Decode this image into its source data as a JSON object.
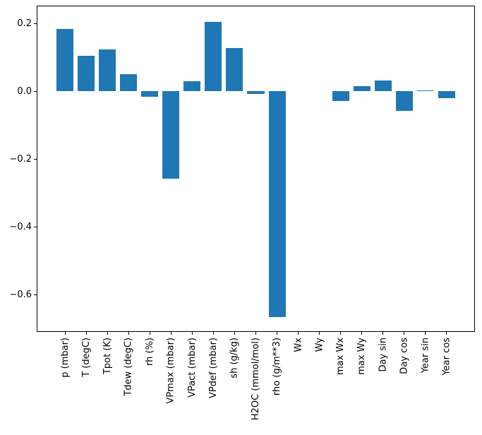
{
  "chart_data": {
    "type": "bar",
    "title": "",
    "xlabel": "",
    "ylabel": "",
    "categories": [
      "p (mbar)",
      "T (degC)",
      "Tpot (K)",
      "Tdew (degC)",
      "rh (%)",
      "VPmax (mbar)",
      "VPact (mbar)",
      "VPdef (mbar)",
      "sh (g/kg)",
      "H2OC (mmol/mol)",
      "rho (g/m**3)",
      "Wx",
      "Wy",
      "max Wx",
      "max Wy",
      "Day sin",
      "Day cos",
      "Year sin",
      "Year cos"
    ],
    "values": [
      0.185,
      0.105,
      0.124,
      0.051,
      -0.015,
      -0.258,
      0.031,
      0.206,
      0.127,
      -0.008,
      -0.667,
      0.0,
      0.0,
      -0.028,
      0.016,
      0.032,
      -0.057,
      0.002,
      -0.021
    ],
    "yticks": [
      0.2,
      0.0,
      -0.2,
      -0.4,
      -0.6
    ],
    "ylim": [
      -0.71,
      0.253
    ],
    "xlim": [
      -1.34,
      19.34
    ],
    "bar_width_units": 0.8,
    "bar_color": "#1f77b4",
    "axis_color": "#000000",
    "background_color": "#ffffff",
    "grid": false,
    "legend": null,
    "x_tick_label_rotation_deg": 90
  }
}
